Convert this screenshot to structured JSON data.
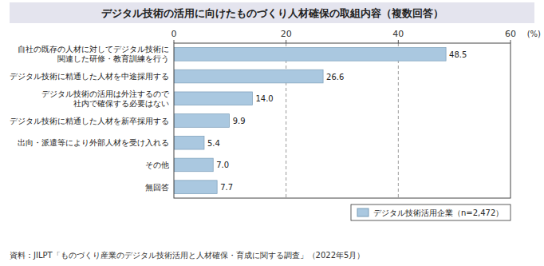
{
  "chart_data": {
    "type": "bar",
    "orientation": "horizontal",
    "title": "デジタル技術の活用に向けたものづくり人材確保の取組内容（複数回答）",
    "categories": [
      "自社の既存の人材に対してデジタル技術に\n関連した研修・教育訓練を行う",
      "デジタル技術に精通した人材を中途採用する",
      "デジタル技術の活用は外注するので\n社内で確保する必要はない",
      "デジタル技術に精通した人材を新卒採用する",
      "出向・派遣等により外部人材を受け入れる",
      "その他",
      "無回答"
    ],
    "series": [
      {
        "name": "デジタル技術活用企業（n=2,472）",
        "color": "#aac8e0",
        "values": [
          48.5,
          26.6,
          14.0,
          9.9,
          5.4,
          7.0,
          7.7
        ],
        "value_labels": [
          "48.5",
          "26.6",
          "14.0",
          "9.9",
          "5.4",
          "7.0",
          "7.7"
        ]
      }
    ],
    "xlim": [
      0,
      60
    ],
    "xticks": [
      0,
      20,
      40,
      60
    ],
    "xlabel": "(%)",
    "footnote": "資料：JILPT「ものづくり産業のデジタル技術活用と人材確保・育成に関する調査」（2022年5月）",
    "grid": true,
    "data_labels": true,
    "legend": "lower right"
  }
}
